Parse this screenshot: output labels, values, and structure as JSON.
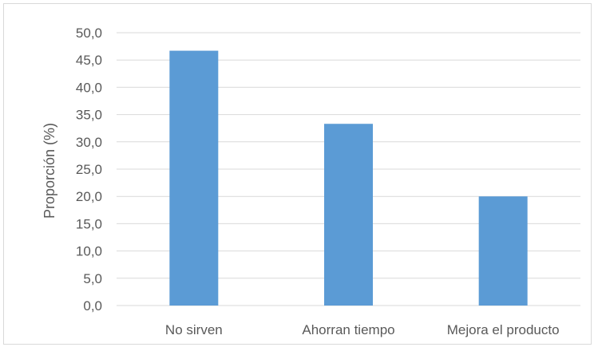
{
  "chart_data": {
    "type": "bar",
    "title": "",
    "xlabel": "",
    "ylabel": "Proporción (%)",
    "categories": [
      "No sirven",
      "Ahorran tiempo",
      "Mejora el producto"
    ],
    "values": [
      46.7,
      33.3,
      20.0
    ],
    "ylim": [
      0,
      50
    ],
    "yticks": [
      "0,0",
      "5,0",
      "10,0",
      "15,0",
      "20,0",
      "25,0",
      "30,0",
      "35,0",
      "40,0",
      "45,0",
      "50,0"
    ],
    "ytick_values": [
      0,
      5,
      10,
      15,
      20,
      25,
      30,
      35,
      40,
      45,
      50
    ],
    "grid": true,
    "bar_color": "#5b9bd5",
    "grid_color": "#d9d9d9"
  }
}
